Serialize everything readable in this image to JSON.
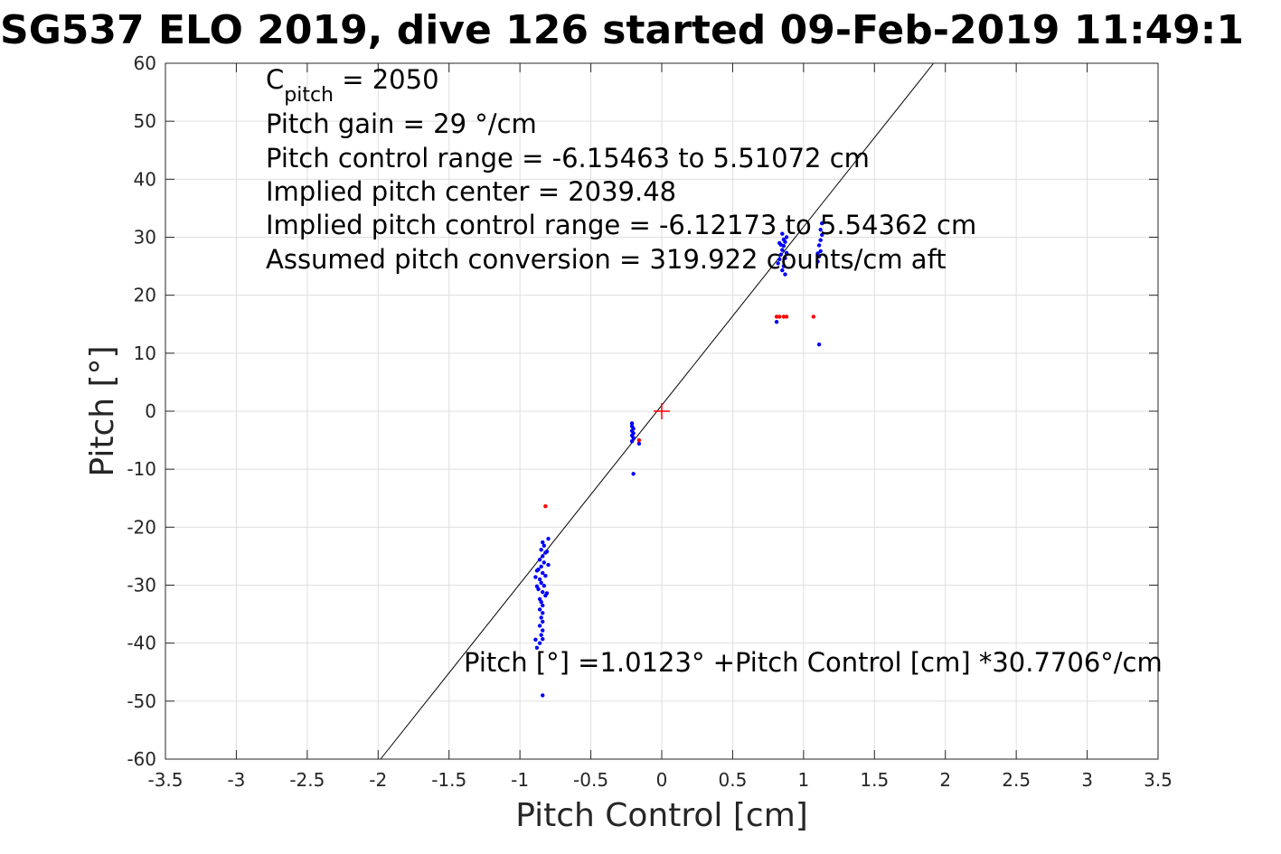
{
  "chart_data": {
    "type": "scatter",
    "title": "SG537 ELO 2019, dive 126 started 09-Feb-2019 11:49:1",
    "xlabel": "Pitch Control [cm]",
    "ylabel": "Pitch [°]",
    "xlim": [
      -3.5,
      3.5
    ],
    "ylim": [
      -60,
      60
    ],
    "xticks": [
      -3.5,
      -3,
      -2.5,
      -2,
      -1.5,
      -1,
      -0.5,
      0,
      0.5,
      1,
      1.5,
      2,
      2.5,
      3,
      3.5
    ],
    "yticks": [
      -60,
      -50,
      -40,
      -30,
      -20,
      -10,
      0,
      10,
      20,
      30,
      40,
      50,
      60
    ],
    "xtick_labels": [
      "-3.5",
      "-3",
      "-2.5",
      "-2",
      "-1.5",
      "-1",
      "-0.5",
      "0",
      "0.5",
      "1",
      "1.5",
      "2",
      "2.5",
      "3",
      "3.5"
    ],
    "ytick_labels": [
      "-60",
      "-50",
      "-40",
      "-30",
      "-20",
      "-10",
      "0",
      "10",
      "20",
      "30",
      "40",
      "50",
      "60"
    ],
    "grid": true,
    "colors": {
      "points": "#0000ff",
      "outliers": "#ff0000",
      "marker": "#ff0000",
      "fit": "#000000"
    },
    "fit_line": {
      "intercept": 1.0123,
      "slope": 30.7706
    },
    "center_marker": {
      "x": 0,
      "y": 0,
      "symbol": "+"
    },
    "series": [
      {
        "points": [
          [
            -0.84,
            -22.6
          ],
          [
            -0.83,
            -23.2
          ],
          [
            -0.85,
            -23.9
          ],
          [
            -0.82,
            -24.4
          ],
          [
            -0.84,
            -25.0
          ],
          [
            -0.86,
            -25.6
          ],
          [
            -0.83,
            -26.1
          ],
          [
            -0.85,
            -26.8
          ],
          [
            -0.87,
            -27.3
          ],
          [
            -0.84,
            -27.9
          ],
          [
            -0.82,
            -28.4
          ],
          [
            -0.86,
            -29.0
          ],
          [
            -0.85,
            -29.6
          ],
          [
            -0.83,
            -30.1
          ],
          [
            -0.87,
            -30.7
          ],
          [
            -0.84,
            -31.2
          ],
          [
            -0.82,
            -31.8
          ],
          [
            -0.86,
            -32.4
          ],
          [
            -0.85,
            -32.9
          ],
          [
            -0.84,
            -33.5
          ],
          [
            -0.86,
            -34.2
          ],
          [
            -0.84,
            -34.8
          ],
          [
            -0.85,
            -35.6
          ],
          [
            -0.84,
            -36.3
          ],
          [
            -0.86,
            -37.0
          ],
          [
            -0.84,
            -37.8
          ],
          [
            -0.85,
            -38.6
          ],
          [
            -0.84,
            -39.3
          ],
          [
            -0.86,
            -40.0
          ],
          [
            -0.88,
            -40.8
          ],
          [
            -0.89,
            -39.4
          ],
          [
            -0.88,
            -27.5
          ],
          [
            -0.89,
            -28.6
          ],
          [
            -0.88,
            -30.2
          ],
          [
            -0.8,
            -22.0
          ],
          [
            -0.81,
            -24.2
          ],
          [
            -0.8,
            -26.5
          ],
          [
            -0.81,
            -31.4
          ],
          [
            -0.84,
            -49.0
          ],
          [
            -0.21,
            -2.1
          ],
          [
            -0.21,
            -2.6
          ],
          [
            -0.2,
            -3.0
          ],
          [
            -0.21,
            -3.4
          ],
          [
            -0.2,
            -3.8
          ],
          [
            -0.21,
            -4.2
          ],
          [
            -0.2,
            -4.6
          ],
          [
            -0.21,
            -5.2
          ],
          [
            -0.2,
            -10.8
          ],
          [
            -0.16,
            -5.6
          ],
          [
            0.82,
            25.5
          ],
          [
            0.83,
            26.2
          ],
          [
            0.84,
            27.0
          ],
          [
            0.85,
            27.8
          ],
          [
            0.86,
            28.5
          ],
          [
            0.87,
            29.2
          ],
          [
            0.88,
            30.0
          ],
          [
            0.85,
            24.3
          ],
          [
            0.86,
            25.0
          ],
          [
            0.87,
            26.4
          ],
          [
            0.88,
            27.3
          ],
          [
            0.84,
            28.7
          ],
          [
            0.86,
            29.6
          ],
          [
            0.87,
            23.6
          ],
          [
            0.83,
            29.0
          ],
          [
            0.85,
            30.6
          ],
          [
            0.81,
            15.4
          ],
          [
            1.1,
            25.8
          ],
          [
            1.11,
            26.7
          ],
          [
            1.12,
            27.6
          ],
          [
            1.11,
            28.6
          ],
          [
            1.12,
            29.5
          ],
          [
            1.13,
            30.4
          ],
          [
            1.12,
            31.3
          ],
          [
            1.1,
            27.2
          ],
          [
            1.13,
            32.4
          ],
          [
            1.11,
            11.5
          ]
        ]
      },
      {
        "points": [
          [
            -0.82,
            -16.4
          ],
          [
            -0.16,
            -5.0
          ],
          [
            0.81,
            16.3
          ],
          [
            0.83,
            16.3
          ],
          [
            0.86,
            16.3
          ],
          [
            0.88,
            16.3
          ],
          [
            1.07,
            16.3
          ]
        ]
      }
    ],
    "annotations": [
      {
        "parts": [
          "C",
          "pitch",
          " = 2050"
        ]
      },
      {
        "text": "Pitch gain = 29 °/cm"
      },
      {
        "text": "Pitch control range = -6.15463 to 5.51072 cm"
      },
      {
        "text": "Implied pitch center = 2039.48"
      },
      {
        "text": "Implied pitch control range = -6.12173 to 5.54362 cm"
      },
      {
        "text": "Assumed pitch conversion = 319.922 counts/cm aft"
      },
      {
        "text": "Pitch [°] =1.0123° +Pitch Control [cm] *30.7706°/cm"
      }
    ]
  }
}
